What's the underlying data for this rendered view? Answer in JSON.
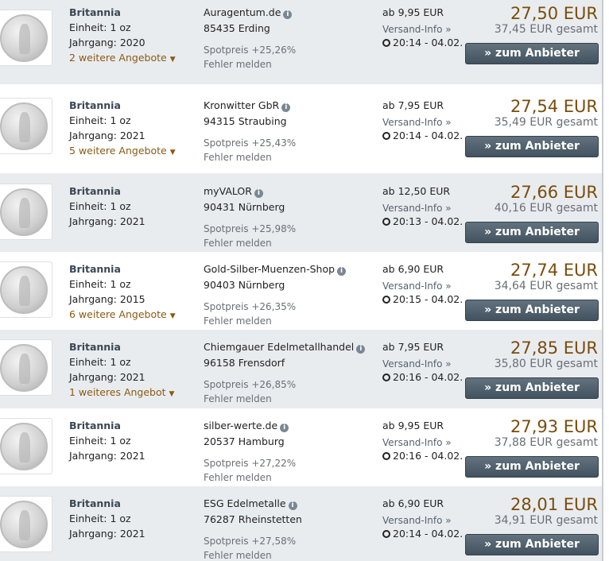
{
  "button_label": "» zum Anbieter",
  "versand_label": "Versand-Info »",
  "error_label": "Fehler melden",
  "colors": {
    "price": "#7a4c0c",
    "offers": "#8b5a14",
    "button": "#4b5b67",
    "row_alt": "#e9ecef"
  },
  "rows": [
    {
      "name": "Britannia",
      "unit": "Einheit: 1 oz",
      "year": "Jahrgang: 2020",
      "offers": "2 weitere Angebote",
      "merchant": "Auragentum.de",
      "city": "85435 Erding",
      "spot": "Spotpreis +25,26%",
      "shipping": "ab 9,95 EUR",
      "time": "20:14 - 04.02.",
      "price": "27,50 EUR",
      "total": "37,45 EUR gesamt"
    },
    {
      "name": "Britannia",
      "unit": "Einheit: 1 oz",
      "year": "Jahrgang: 2021",
      "offers": "5 weitere Angebote",
      "merchant": "Kronwitter GbR",
      "city": "94315 Straubing",
      "spot": "Spotpreis +25,43%",
      "shipping": "ab 7,95 EUR",
      "time": "20:14 - 04.02.",
      "price": "27,54 EUR",
      "total": "35,49 EUR gesamt"
    },
    {
      "name": "Britannia",
      "unit": "Einheit: 1 oz",
      "year": "Jahrgang: 2021",
      "offers": "",
      "merchant": "myVALOR",
      "city": "90431 Nürnberg",
      "spot": "Spotpreis +25,98%",
      "shipping": "ab 12,50 EUR",
      "time": "20:13 - 04.02.",
      "price": "27,66 EUR",
      "total": "40,16 EUR gesamt"
    },
    {
      "name": "Britannia",
      "unit": "Einheit: 1 oz",
      "year": "Jahrgang: 2015",
      "offers": "6 weitere Angebote",
      "merchant": "Gold-Silber-Muenzen-Shop",
      "city": "90403 Nürnberg",
      "spot": "Spotpreis +26,35%",
      "shipping": "ab 6,90 EUR",
      "time": "20:15 - 04.02.",
      "price": "27,74 EUR",
      "total": "34,64 EUR gesamt"
    },
    {
      "name": "Britannia",
      "unit": "Einheit: 1 oz",
      "year": "Jahrgang: 2021",
      "offers": "1 weiteres Angebot",
      "merchant": "Chiemgauer Edelmetallhandel",
      "city": "96158 Frensdorf",
      "spot": "Spotpreis +26,85%",
      "shipping": "ab 7,95 EUR",
      "time": "20:16 - 04.02.",
      "price": "27,85 EUR",
      "total": "35,80 EUR gesamt"
    },
    {
      "name": "Britannia",
      "unit": "Einheit: 1 oz",
      "year": "Jahrgang: 2021",
      "offers": "",
      "merchant": "silber-werte.de",
      "city": "20537 Hamburg",
      "spot": "Spotpreis +27,22%",
      "shipping": "ab 9,95 EUR",
      "time": "20:16 - 04.02.",
      "price": "27,93 EUR",
      "total": "37,88 EUR gesamt"
    },
    {
      "name": "Britannia",
      "unit": "Einheit: 1 oz",
      "year": "Jahrgang: 2021",
      "offers": "",
      "merchant": "ESG Edelmetalle",
      "city": "76287 Rheinstetten",
      "spot": "Spotpreis +27,58%",
      "shipping": "ab 6,90 EUR",
      "time": "20:14 - 04.02.",
      "price": "28,01 EUR",
      "total": "34,91 EUR gesamt"
    }
  ]
}
